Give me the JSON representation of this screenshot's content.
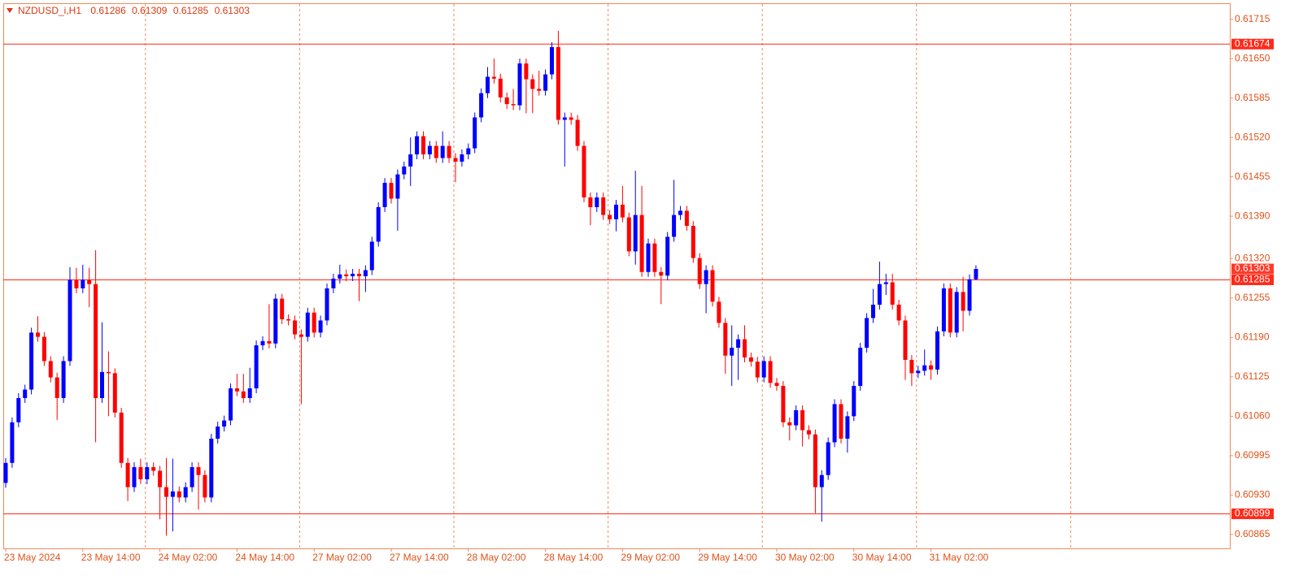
{
  "chart_data": {
    "type": "candlestick",
    "title": "NZDUSD_i,H1",
    "categories": [
      "23 May 2024",
      null,
      null,
      null,
      null,
      null,
      null,
      null,
      null,
      null,
      null,
      null,
      "23 May 14:00",
      null,
      null,
      null,
      null,
      null,
      null,
      null,
      null,
      null,
      null,
      null,
      "24 May 02:00",
      null,
      null,
      null,
      null,
      null,
      null,
      null,
      null,
      null,
      null,
      null,
      "24 May 14:00",
      null,
      null,
      null,
      null,
      null,
      null,
      null,
      null,
      null,
      null,
      null,
      "27 May 02:00",
      null,
      null,
      null,
      null,
      null,
      null,
      null,
      null,
      null,
      null,
      null,
      "27 May 14:00",
      null,
      null,
      null,
      null,
      null,
      null,
      null,
      null,
      null,
      null,
      null,
      "28 May 02:00",
      null,
      null,
      null,
      null,
      null,
      null,
      null,
      null,
      null,
      null,
      null,
      "28 May 14:00",
      null,
      null,
      null,
      null,
      null,
      null,
      null,
      null,
      null,
      null,
      null,
      "29 May 02:00",
      null,
      null,
      null,
      null,
      null,
      null,
      null,
      null,
      null,
      null,
      null,
      "29 May 14:00",
      null,
      null,
      null,
      null,
      null,
      null,
      null,
      null,
      null,
      null,
      null,
      "30 May 02:00",
      null,
      null,
      null,
      null,
      null,
      null,
      null,
      null,
      null,
      null,
      null,
      "30 May 14:00",
      null,
      null,
      null,
      null,
      null,
      null,
      null,
      null,
      null,
      null,
      null,
      "31 May 02:00",
      null,
      null,
      null,
      null,
      null,
      null,
      null
    ],
    "open": [
      0.6095,
      0.60983,
      0.6105,
      0.6109,
      0.61104,
      0.61198,
      0.61191,
      0.61151,
      0.61124,
      0.6109,
      0.61151,
      0.61285,
      0.61271,
      0.61285,
      0.61278,
      0.6109,
      0.61133,
      0.61131,
      0.61066,
      0.60983,
      0.60943,
      0.60976,
      0.60956,
      0.60976,
      0.6097,
      0.60943,
      0.60927,
      0.60936,
      0.60926,
      0.60943,
      0.60976,
      0.60963,
      0.60926,
      0.61023,
      0.61043,
      0.61053,
      0.61106,
      0.61101,
      0.6109,
      0.61106,
      0.61177,
      0.61184,
      0.6118,
      0.61254,
      0.6122,
      0.61218,
      0.61195,
      0.61191,
      0.61231,
      0.61198,
      0.61218,
      0.61271,
      0.61287,
      0.61294,
      0.61291,
      0.61295,
      0.61291,
      0.61301,
      0.61348,
      0.61405,
      0.61445,
      0.61419,
      0.61459,
      0.61472,
      0.61492,
      0.61522,
      0.61492,
      0.61506,
      0.61486,
      0.61506,
      0.61486,
      0.6148,
      0.61492,
      0.61502,
      0.61553,
      0.61593,
      0.6162,
      0.61617,
      0.61586,
      0.61575,
      0.61573,
      0.61642,
      0.61616,
      0.616,
      0.61597,
      0.61624,
      0.61669,
      0.61549,
      0.61553,
      0.61549,
      0.61506,
      0.61421,
      0.61405,
      0.61421,
      0.61392,
      0.61385,
      0.61409,
      0.61388,
      0.61332,
      0.61392,
      0.61298,
      0.61345,
      0.61298,
      0.61292,
      0.61356,
      0.61392,
      0.61399,
      0.61374,
      0.61321,
      0.61278,
      0.61301,
      0.61249,
      0.61214,
      0.6116,
      0.61173,
      0.61187,
      0.61157,
      0.6115,
      0.61124,
      0.61151,
      0.61115,
      0.6111,
      0.6105,
      0.61045,
      0.6107,
      0.61037,
      0.6103,
      0.60943,
      0.60963,
      0.61017,
      0.6108,
      0.61023,
      0.6106,
      0.6111,
      0.61173,
      0.61222,
      0.61244,
      0.61278,
      0.61281,
      0.61244,
      0.61218,
      0.61153,
      0.61131,
      0.61135,
      0.61144,
      0.61137,
      0.612,
      0.61271,
      0.61198,
      0.61265,
      0.61234,
      0.61286
    ],
    "high": [
      0.60991,
      0.61058,
      0.61098,
      0.61112,
      0.61206,
      0.61225,
      0.61199,
      0.61159,
      0.61132,
      0.61159,
      0.61306,
      0.61305,
      0.6131,
      0.61305,
      0.61334,
      0.61215,
      0.61167,
      0.61139,
      0.61074,
      0.60991,
      0.60984,
      0.6099,
      0.60984,
      0.60984,
      0.60978,
      0.60991,
      0.6099,
      0.60944,
      0.60951,
      0.60984,
      0.60984,
      0.60971,
      0.61031,
      0.61051,
      0.61061,
      0.61114,
      0.6113,
      0.6113,
      0.6114,
      0.61185,
      0.61192,
      0.61245,
      0.61262,
      0.61262,
      0.61228,
      0.61226,
      0.61203,
      0.61239,
      0.61239,
      0.61226,
      0.61279,
      0.61295,
      0.6131,
      0.61302,
      0.61303,
      0.61303,
      0.61309,
      0.61356,
      0.61413,
      0.61453,
      0.61453,
      0.61467,
      0.6148,
      0.6152,
      0.6153,
      0.6153,
      0.61514,
      0.61514,
      0.6153,
      0.61514,
      0.61494,
      0.615,
      0.6151,
      0.61561,
      0.61601,
      0.61636,
      0.6165,
      0.61625,
      0.61594,
      0.616,
      0.6165,
      0.6165,
      0.61624,
      0.6163,
      0.61632,
      0.61677,
      0.61696,
      0.61561,
      0.61561,
      0.61557,
      0.61514,
      0.61429,
      0.61429,
      0.61429,
      0.614,
      0.61417,
      0.6144,
      0.61396,
      0.61465,
      0.6144,
      0.61353,
      0.61353,
      0.61306,
      0.61364,
      0.6145,
      0.61407,
      0.61407,
      0.61382,
      0.61329,
      0.61309,
      0.61309,
      0.61257,
      0.61222,
      0.6121,
      0.61195,
      0.6121,
      0.61165,
      0.61158,
      0.61159,
      0.61159,
      0.61123,
      0.61118,
      0.61058,
      0.61078,
      0.61078,
      0.61045,
      0.61038,
      0.60971,
      0.61025,
      0.61088,
      0.61088,
      0.61068,
      0.61118,
      0.61181,
      0.6123,
      0.6127,
      0.61315,
      0.61295,
      0.61295,
      0.61252,
      0.61226,
      0.61161,
      0.61143,
      0.6117,
      0.61152,
      0.61208,
      0.61279,
      0.61279,
      0.61273,
      0.6129,
      0.61294,
      0.61309
    ],
    "low": [
      0.60942,
      0.60975,
      0.61042,
      0.61082,
      0.61096,
      0.61183,
      0.61143,
      0.61116,
      0.61054,
      0.61082,
      0.61143,
      0.61263,
      0.61263,
      0.6124,
      0.61017,
      0.61082,
      0.6106,
      0.61058,
      0.60975,
      0.6092,
      0.60935,
      0.60948,
      0.60948,
      0.60962,
      0.6089,
      0.60863,
      0.6087,
      0.60918,
      0.60918,
      0.60935,
      0.60906,
      0.60918,
      0.60918,
      0.61015,
      0.61035,
      0.61045,
      0.61093,
      0.61082,
      0.61082,
      0.61098,
      0.61169,
      0.61172,
      0.61172,
      0.61212,
      0.6121,
      0.61187,
      0.6108,
      0.61183,
      0.6119,
      0.6119,
      0.6121,
      0.61263,
      0.61279,
      0.61283,
      0.61283,
      0.6125,
      0.61265,
      0.61293,
      0.6134,
      0.61397,
      0.61411,
      0.61366,
      0.61451,
      0.6144,
      0.61484,
      0.61484,
      0.61484,
      0.61478,
      0.61478,
      0.61478,
      0.61446,
      0.61472,
      0.61484,
      0.61494,
      0.61545,
      0.61585,
      0.61609,
      0.61578,
      0.61567,
      0.61565,
      0.61565,
      0.6156,
      0.6156,
      0.61589,
      0.61589,
      0.61616,
      0.61541,
      0.61472,
      0.61541,
      0.61498,
      0.61413,
      0.61375,
      0.61397,
      0.61384,
      0.61377,
      0.61365,
      0.6138,
      0.61324,
      0.6131,
      0.6129,
      0.6129,
      0.6129,
      0.61245,
      0.61284,
      0.61348,
      0.61384,
      0.61366,
      0.61313,
      0.6127,
      0.6123,
      0.61241,
      0.61206,
      0.6113,
      0.6111,
      0.6112,
      0.61149,
      0.61142,
      0.61116,
      0.61116,
      0.61107,
      0.61102,
      0.61042,
      0.6102,
      0.61037,
      0.6101,
      0.61022,
      0.609,
      0.60886,
      0.60955,
      0.61009,
      0.61015,
      0.61,
      0.61052,
      0.61102,
      0.61165,
      0.61214,
      0.61236,
      0.6126,
      0.61236,
      0.6121,
      0.6112,
      0.6111,
      0.61123,
      0.61127,
      0.6112,
      0.61129,
      0.61192,
      0.6119,
      0.6119,
      0.612,
      0.61226,
      0.61285
    ],
    "close": [
      0.60983,
      0.6105,
      0.6109,
      0.61104,
      0.61198,
      0.61191,
      0.61151,
      0.61124,
      0.6109,
      0.61151,
      0.61285,
      0.61271,
      0.61285,
      0.61278,
      0.6109,
      0.61133,
      0.61131,
      0.61066,
      0.60983,
      0.60943,
      0.60976,
      0.60956,
      0.60976,
      0.6097,
      0.60943,
      0.60927,
      0.60936,
      0.60926,
      0.60943,
      0.60976,
      0.60963,
      0.60926,
      0.61023,
      0.61043,
      0.61053,
      0.61106,
      0.61101,
      0.6109,
      0.61106,
      0.61177,
      0.61184,
      0.6118,
      0.61254,
      0.6122,
      0.61218,
      0.61195,
      0.61191,
      0.61231,
      0.61198,
      0.61218,
      0.61271,
      0.61287,
      0.61294,
      0.61291,
      0.61295,
      0.61291,
      0.61301,
      0.61348,
      0.61405,
      0.61445,
      0.61419,
      0.61459,
      0.61472,
      0.61492,
      0.61522,
      0.61492,
      0.61506,
      0.61486,
      0.61506,
      0.61486,
      0.6148,
      0.61492,
      0.61502,
      0.61553,
      0.61593,
      0.6162,
      0.61617,
      0.61586,
      0.61575,
      0.61573,
      0.61642,
      0.61616,
      0.616,
      0.61597,
      0.61624,
      0.61669,
      0.61549,
      0.61553,
      0.61549,
      0.61506,
      0.61421,
      0.61405,
      0.61421,
      0.61392,
      0.61385,
      0.61409,
      0.61388,
      0.61332,
      0.61392,
      0.61298,
      0.61345,
      0.61298,
      0.61292,
      0.61356,
      0.61392,
      0.61399,
      0.61374,
      0.61321,
      0.61278,
      0.61301,
      0.61249,
      0.61214,
      0.6116,
      0.61173,
      0.61187,
      0.61157,
      0.6115,
      0.61124,
      0.61151,
      0.61115,
      0.6111,
      0.6105,
      0.61045,
      0.6107,
      0.61037,
      0.6103,
      0.60943,
      0.60963,
      0.61017,
      0.6108,
      0.61023,
      0.6106,
      0.6111,
      0.61173,
      0.61222,
      0.61244,
      0.61278,
      0.61281,
      0.61244,
      0.61218,
      0.61153,
      0.61131,
      0.61135,
      0.61144,
      0.61137,
      0.612,
      0.61271,
      0.61198,
      0.61265,
      0.61234,
      0.61286,
      0.61303
    ],
    "up_color": "#0000ff",
    "down_color": "#ff0000",
    "ylim": [
      0.60842,
      0.6174
    ],
    "yticks": [
      0.61715,
      {
        "value": 0.6165,
        "label": "0.61650"
      },
      0.61585,
      {
        "value": 0.6152,
        "label": "0.61520"
      },
      0.61455,
      {
        "value": 0.6139,
        "label": "0.61390"
      },
      {
        "value": 0.6132,
        "label": "0.61320"
      },
      0.61255,
      {
        "value": 0.6119,
        "label": "0.61190"
      },
      0.61125,
      {
        "value": 0.6106,
        "label": "0.61060"
      },
      0.60995,
      {
        "value": 0.6093,
        "label": "0.60930"
      },
      0.60865
    ],
    "levels": [
      0.61674,
      0.61285,
      0.60899
    ],
    "last_price": 0.61303,
    "grid": true
  }
}
